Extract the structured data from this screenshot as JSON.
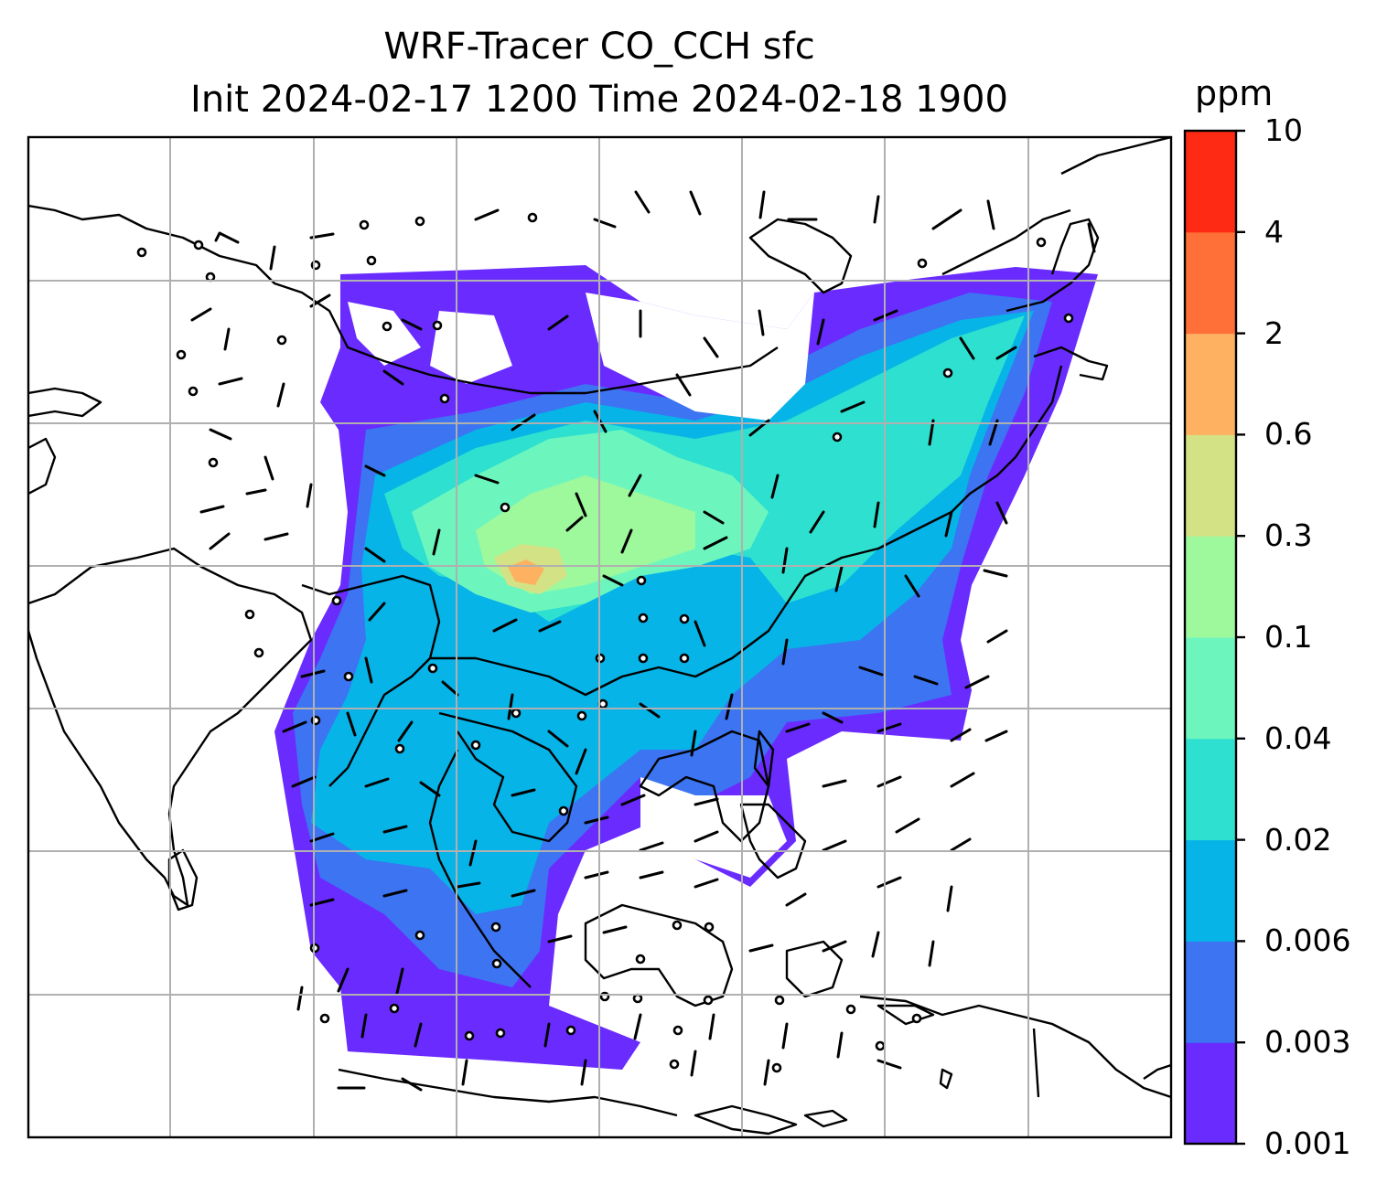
{
  "title_line1": "WRF-Tracer CO_CCH sfc",
  "title_line2": "Init 2024-02-17 1200 Time 2024-02-18 1900",
  "colorbar": {
    "unit": "ppm",
    "levels": [
      "0.001",
      "0.003",
      "0.006",
      "0.02",
      "0.04",
      "0.1",
      "0.3",
      "0.6",
      "2",
      "4",
      "10"
    ],
    "colors": [
      "#6a2bff",
      "#3c74f2",
      "#06b4e8",
      "#2ee0d0",
      "#6cf6be",
      "#9ef89c",
      "#d4e286",
      "#feb160",
      "#ff7038",
      "#ff2a14"
    ]
  },
  "map": {
    "region": "South and Southeast Asia",
    "gridlines": true,
    "coastline_color": "#000000",
    "wind_barbs": "black"
  }
}
